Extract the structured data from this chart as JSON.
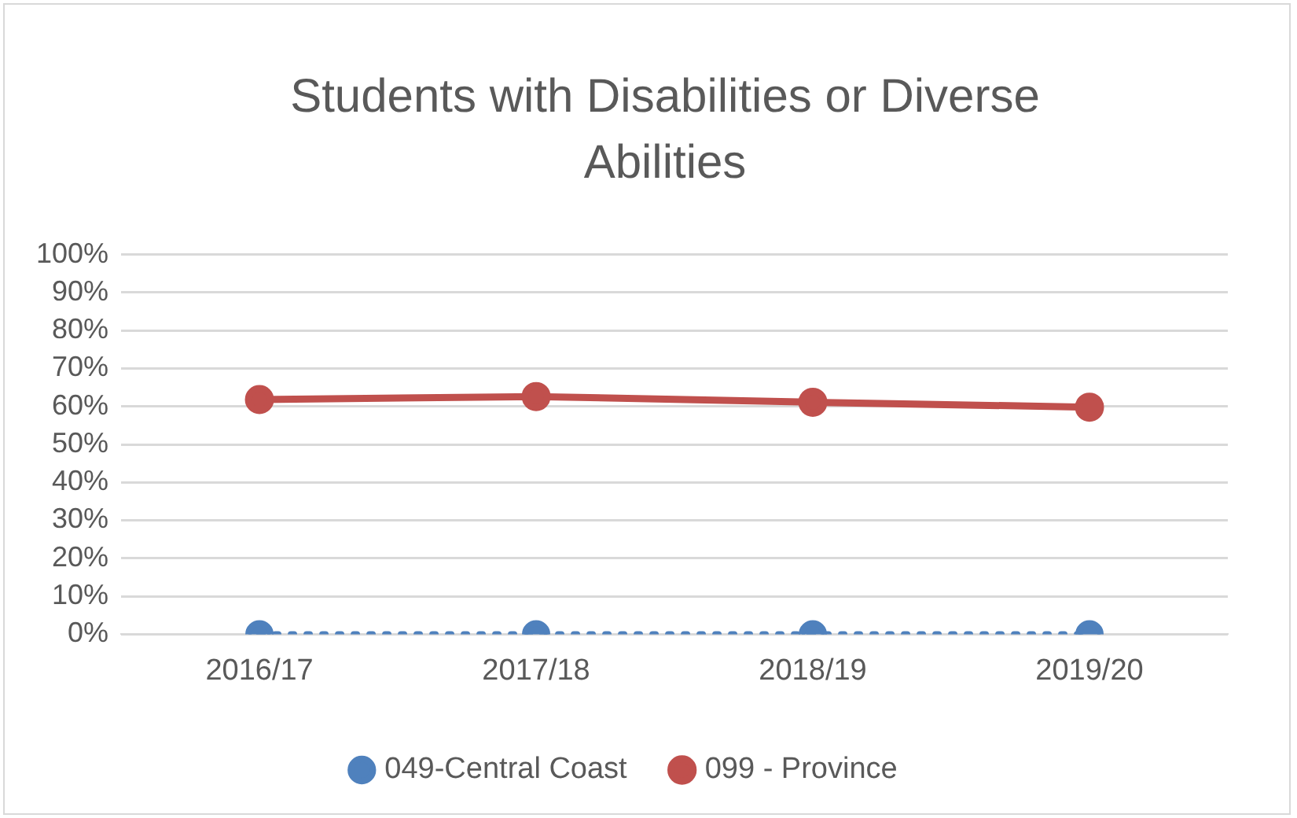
{
  "chart_data": {
    "type": "line",
    "title": "Students with Disabilities or Diverse Abilities",
    "categories": [
      "2016/17",
      "2017/18",
      "2018/19",
      "2019/20"
    ],
    "series": [
      {
        "name": "049-Central Coast",
        "color": "#4f81bd",
        "values": [
          0,
          0,
          0,
          0
        ],
        "line_style": "dotted",
        "marker": "circle"
      },
      {
        "name": "099 - Province",
        "color": "#c0504d",
        "values": [
          61.8,
          62.6,
          61.1,
          59.8
        ],
        "line_style": "solid",
        "marker": "circle"
      }
    ],
    "ylim": [
      0,
      100
    ],
    "yticks": [
      {
        "value": 0,
        "label": "0%"
      },
      {
        "value": 10,
        "label": "10%"
      },
      {
        "value": 20,
        "label": "20%"
      },
      {
        "value": 30,
        "label": "30%"
      },
      {
        "value": 40,
        "label": "40%"
      },
      {
        "value": 50,
        "label": "50%"
      },
      {
        "value": 60,
        "label": "60%"
      },
      {
        "value": 70,
        "label": "70%"
      },
      {
        "value": 80,
        "label": "80%"
      },
      {
        "value": 90,
        "label": "90%"
      },
      {
        "value": 100,
        "label": "100%"
      }
    ],
    "grid": "y",
    "legend": "bottom"
  }
}
